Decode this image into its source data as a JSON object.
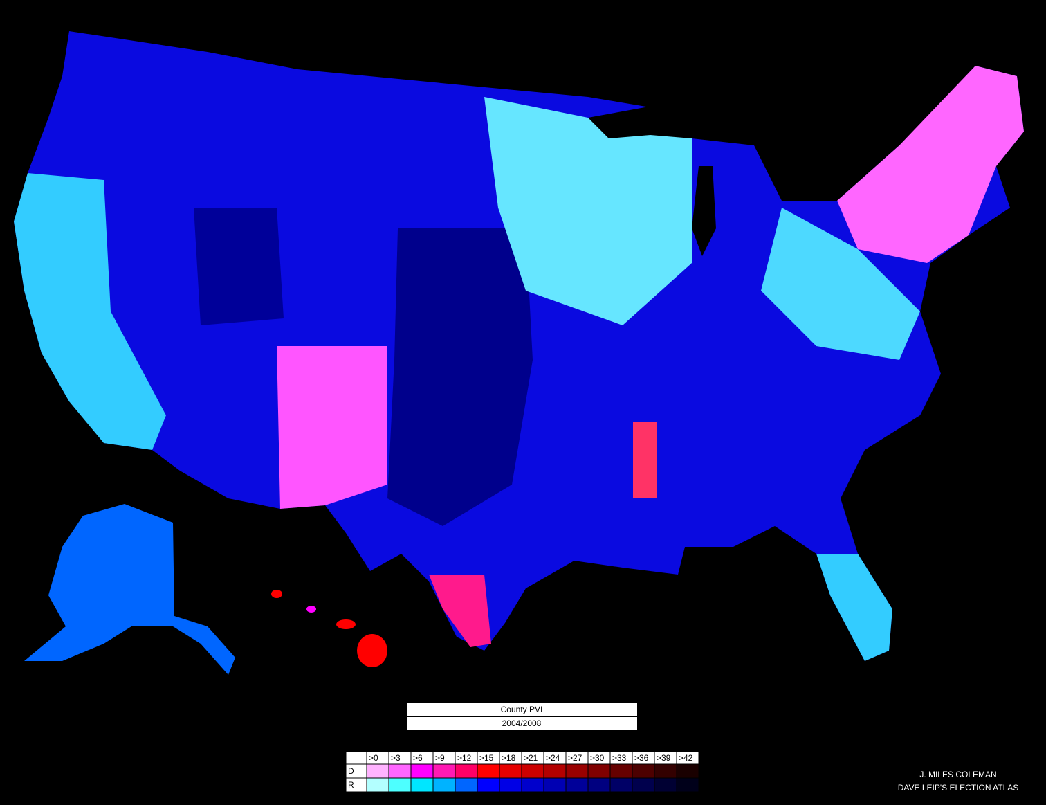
{
  "title": "County PVI",
  "subtitle": "2004/2008",
  "legend": {
    "thresholds": [
      ">0",
      ">3",
      ">6",
      ">9",
      ">12",
      ">15",
      ">18",
      ">21",
      ">24",
      ">27",
      ">30",
      ">33",
      ">36",
      ">39",
      ">42"
    ],
    "rows": [
      {
        "label": "D",
        "colors": [
          "#ffb3ff",
          "#ff66ff",
          "#ff00ff",
          "#ff1ab3",
          "#ff0066",
          "#ff0000",
          "#e60000",
          "#cc0000",
          "#b30000",
          "#990000",
          "#800000",
          "#660000",
          "#4d0000",
          "#330000",
          "#1a0000"
        ]
      },
      {
        "label": "R",
        "colors": [
          "#b3ffff",
          "#4dffff",
          "#00e6ff",
          "#00b3ff",
          "#0066ff",
          "#0000ff",
          "#0000e6",
          "#0000cc",
          "#0000b3",
          "#000099",
          "#000080",
          "#000066",
          "#00004d",
          "#000033",
          "#00001a"
        ]
      }
    ]
  },
  "credits": [
    "J. MILES COLEMAN",
    "DAVE LEIP'S ELECTION ATLAS"
  ]
}
